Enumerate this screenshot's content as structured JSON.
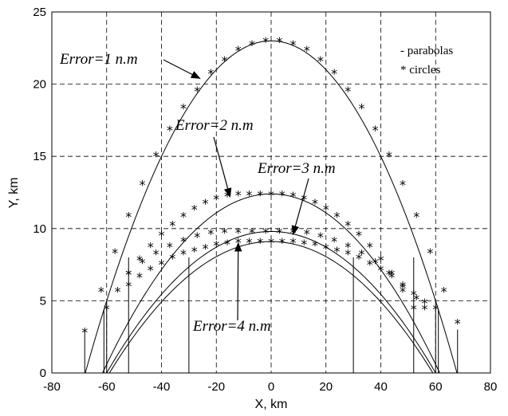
{
  "chart_data": {
    "type": "line",
    "xlabel": "X, km",
    "ylabel": "Y, km",
    "xlim": [
      -80,
      80
    ],
    "ylim": [
      0,
      25
    ],
    "xticks": [
      -80,
      -60,
      -40,
      -20,
      0,
      20,
      40,
      60,
      80
    ],
    "yticks": [
      0,
      5,
      10,
      15,
      20,
      25
    ],
    "grid": true,
    "legend": {
      "placement": "top-right",
      "entries": [
        "- parabolas",
        "* circles"
      ]
    },
    "series": [
      {
        "name": "Error=1 n.m",
        "peak_y": 23.0,
        "half_width_x": 67.8
      },
      {
        "name": "Error=2 n.m",
        "peak_y": 12.4,
        "half_width_x": 61.5
      },
      {
        "name": "Error=3 n.m",
        "peak_y": 9.8,
        "half_width_x": 60.0
      },
      {
        "name": "Error=4 n.m",
        "peak_y": 9.1,
        "half_width_x": 59.0
      }
    ],
    "circle_markers": [
      {
        "x": [
          -68,
          -62,
          -57,
          -52,
          -47,
          -42,
          -37,
          -32,
          -27,
          -22,
          -17,
          -12,
          -7,
          -2,
          3,
          8,
          13,
          18,
          23,
          28,
          33,
          38,
          43,
          48,
          53,
          58,
          63,
          68
        ],
        "y": [
          2.9,
          5.7,
          8.4,
          10.9,
          13.1,
          15.1,
          16.9,
          18.4,
          19.6,
          20.8,
          21.7,
          22.4,
          22.8,
          23.0,
          23.0,
          22.8,
          22.4,
          21.7,
          20.8,
          19.6,
          18.4,
          16.9,
          15.1,
          13.1,
          10.9,
          8.4,
          5.7,
          3.5
        ]
      },
      {
        "x": [
          -60,
          -56,
          -52,
          -48,
          -44,
          -40,
          -36,
          -32,
          -28,
          -24,
          -20,
          -16,
          -12,
          -8,
          -4,
          0,
          4,
          8,
          12,
          16,
          20,
          24,
          28,
          32,
          36,
          40,
          44,
          48,
          52,
          56,
          60
        ],
        "y": [
          4.5,
          5.7,
          6.9,
          7.9,
          8.8,
          9.6,
          10.3,
          10.9,
          11.4,
          11.8,
          12.1,
          12.3,
          12.4,
          12.4,
          12.4,
          12.4,
          12.4,
          12.3,
          12.1,
          11.8,
          11.4,
          10.9,
          10.3,
          9.6,
          8.8,
          7.9,
          6.9,
          5.7,
          4.5,
          4.5,
          4.5
        ]
      },
      {
        "x": [
          -52,
          -47,
          -42,
          -37,
          -32,
          -27,
          -22,
          -17,
          -12,
          -7,
          -2,
          3,
          8,
          13,
          18,
          23,
          28,
          33,
          38,
          43,
          48,
          53
        ],
        "y": [
          6.9,
          7.7,
          8.3,
          8.8,
          9.2,
          9.5,
          9.7,
          9.8,
          9.8,
          9.8,
          9.8,
          9.8,
          9.8,
          9.7,
          9.5,
          9.2,
          8.8,
          8.3,
          7.7,
          6.9,
          6.0,
          5.2
        ]
      },
      {
        "x": [
          -52,
          -48,
          -44,
          -40,
          -36,
          -32,
          -28,
          -24,
          -20,
          -16,
          -12,
          -8,
          -4,
          0,
          4,
          8,
          12,
          16,
          20,
          24,
          28,
          32,
          36,
          40,
          44,
          48,
          52,
          56
        ],
        "y": [
          6.1,
          6.7,
          7.2,
          7.6,
          8.0,
          8.3,
          8.5,
          8.7,
          8.9,
          9.0,
          9.1,
          9.1,
          9.1,
          9.1,
          9.1,
          9.1,
          9.0,
          8.9,
          8.7,
          8.5,
          8.3,
          8.0,
          7.6,
          7.2,
          6.7,
          6.1,
          5.5,
          4.9
        ]
      }
    ],
    "verticals_x": [
      -68,
      -61,
      -60,
      -52,
      -30,
      30,
      52,
      60,
      61,
      68
    ],
    "annotations": [
      {
        "text": "Error=1 n.m",
        "arrow_to": [
          -26,
          20.4
        ]
      },
      {
        "text": "Error=2 n.m",
        "arrow_to": [
          -15,
          12.2
        ]
      },
      {
        "text": "Error=3 n.m",
        "arrow_to": [
          8,
          9.6
        ]
      },
      {
        "text": "Error=4 n.m",
        "arrow_to": [
          -12,
          9.0
        ]
      }
    ]
  }
}
